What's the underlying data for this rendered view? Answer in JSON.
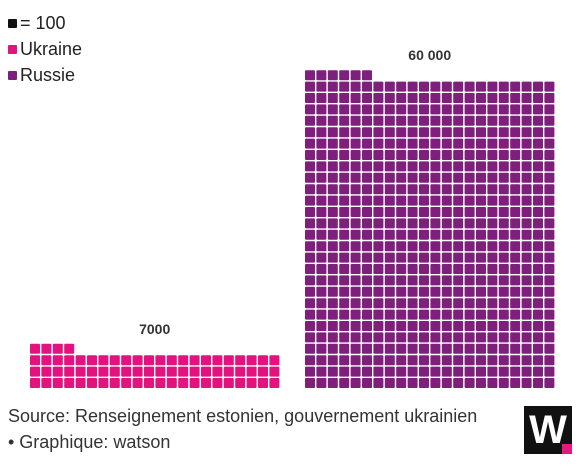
{
  "legend": {
    "unit_label": "= 100",
    "items": [
      {
        "label": "Ukraine",
        "color": "#e4127f"
      },
      {
        "label": "Russie",
        "color": "#7d1f7b"
      }
    ]
  },
  "chart_data": {
    "type": "waffle",
    "unit": 100,
    "series": [
      {
        "name": "Ukraine",
        "value": 7000,
        "value_label": "7000",
        "color": "#e4127f"
      },
      {
        "name": "Russie",
        "value": 60000,
        "value_label": "60 000",
        "color": "#7d1f7b"
      }
    ]
  },
  "source": {
    "text": "Source: Renseignement estonien, gouvernement ukrainien • Graphique: watson"
  },
  "logo": {
    "letter": "W",
    "color": "#e8177d"
  },
  "colors": {
    "unit_swatch": "#111111"
  }
}
